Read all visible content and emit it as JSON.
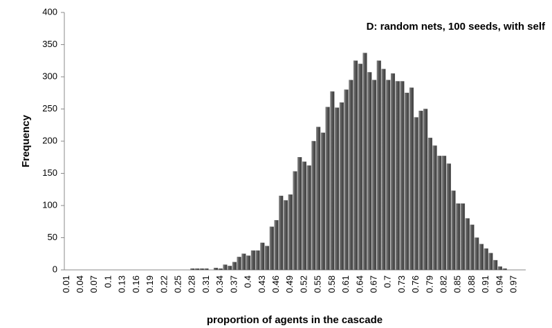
{
  "chart_data": {
    "type": "bar",
    "title": "D: random nets, 100 seeds, with self",
    "x_label": "proportion of agents in the cascade",
    "y_label": "Frequency",
    "categories": [
      "0.01",
      null,
      null,
      "0.04",
      null,
      null,
      "0.07",
      null,
      null,
      "0.1",
      null,
      null,
      "0.13",
      null,
      null,
      "0.16",
      null,
      null,
      "0.19",
      null,
      null,
      "0.22",
      null,
      null,
      "0.25",
      null,
      null,
      "0.28",
      null,
      null,
      "0.31",
      null,
      null,
      "0.34",
      null,
      null,
      "0.37",
      null,
      null,
      "0.4",
      null,
      null,
      "0.43",
      null,
      null,
      "0.46",
      null,
      null,
      "0.49",
      null,
      null,
      "0.52",
      null,
      null,
      "0.55",
      null,
      null,
      "0.58",
      null,
      null,
      "0.61",
      null,
      null,
      "0.64",
      null,
      null,
      "0.67",
      null,
      null,
      "0.7",
      null,
      null,
      "0.73",
      null,
      null,
      "0.76",
      null,
      null,
      "0.79",
      null,
      null,
      "0.82",
      null,
      null,
      "0.85",
      null,
      null,
      "0.88",
      null,
      null,
      "0.91",
      null,
      null,
      "0.94",
      null,
      null,
      "0.97",
      null,
      null
    ],
    "values": [
      0,
      0,
      0,
      0,
      0,
      0,
      0,
      0,
      0,
      0,
      0,
      0,
      0,
      0,
      0,
      0,
      0,
      0,
      0,
      0,
      0,
      0,
      0,
      0,
      0,
      0,
      0,
      2,
      2,
      2,
      2,
      0,
      3,
      2,
      8,
      6,
      12,
      20,
      25,
      22,
      30,
      30,
      42,
      37,
      67,
      77,
      115,
      108,
      117,
      153,
      175,
      168,
      162,
      200,
      222,
      213,
      253,
      277,
      252,
      260,
      280,
      295,
      325,
      320,
      337,
      307,
      295,
      325,
      312,
      295,
      305,
      293,
      293,
      275,
      283,
      237,
      247,
      250,
      205,
      193,
      177,
      177,
      165,
      123,
      103,
      103,
      80,
      70,
      50,
      40,
      33,
      26,
      15,
      5,
      2,
      0,
      0,
      0,
      0
    ],
    "color": "#595959",
    "ylim": [
      0,
      400
    ],
    "yticks": [
      0,
      50,
      100,
      150,
      200,
      250,
      300,
      350,
      400
    ]
  }
}
